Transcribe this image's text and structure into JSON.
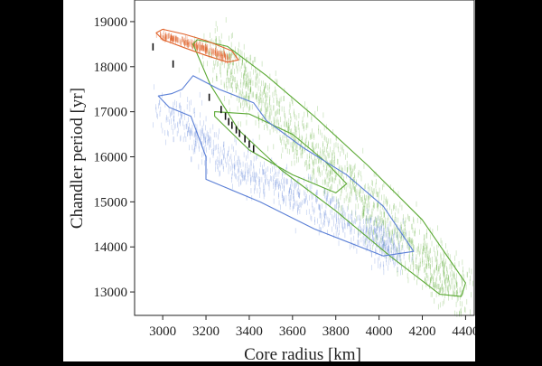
{
  "chart_data": {
    "type": "scatter",
    "title": "",
    "xlabel": "Core radius [km]",
    "ylabel": "Chandler period [yr]",
    "xlim": [
      2870,
      4440
    ],
    "ylim": [
      12480,
      19480
    ],
    "xticks": [
      3000,
      3200,
      3400,
      3600,
      3800,
      4000,
      4200,
      4400
    ],
    "yticks": [
      13000,
      14000,
      15000,
      16000,
      17000,
      18000,
      19000
    ],
    "grid": false,
    "legend": "none",
    "series": [
      {
        "color": "#5aa832",
        "marker": "vertical-dash",
        "cloud_centerline": [
          [
            3250,
            18350
          ],
          [
            3450,
            17250
          ],
          [
            3700,
            16100
          ],
          [
            3950,
            15000
          ],
          [
            4200,
            13800
          ],
          [
            4380,
            12950
          ]
        ],
        "contours": [
          [
            [
              3140,
              18500
            ],
            [
              3160,
              18600
            ],
            [
              3300,
              18450
            ],
            [
              3480,
              17800
            ],
            [
              3700,
              16900
            ],
            [
              3950,
              15800
            ],
            [
              4200,
              14600
            ],
            [
              4400,
              13200
            ],
            [
              4380,
              12900
            ],
            [
              4280,
              12950
            ],
            [
              4050,
              13800
            ],
            [
              3800,
              14800
            ],
            [
              3550,
              15700
            ],
            [
              3350,
              16600
            ],
            [
              3220,
              17600
            ],
            [
              3140,
              18500
            ]
          ],
          [
            [
              3240,
              17000
            ],
            [
              3400,
              16950
            ],
            [
              3600,
              16500
            ],
            [
              3750,
              15900
            ],
            [
              3850,
              15400
            ],
            [
              3800,
              15200
            ],
            [
              3600,
              15600
            ],
            [
              3400,
              16150
            ],
            [
              3240,
              16900
            ],
            [
              3240,
              17000
            ]
          ]
        ]
      },
      {
        "color": "#5a7fd6",
        "marker": "vertical-dash",
        "cloud_centerline": [
          [
            3020,
            17100
          ],
          [
            3200,
            16300
          ],
          [
            3400,
            15700
          ],
          [
            3600,
            15200
          ],
          [
            3800,
            14700
          ],
          [
            4000,
            14150
          ],
          [
            4100,
            13900
          ]
        ],
        "contours": [
          [
            [
              2980,
              17350
            ],
            [
              3040,
              17400
            ],
            [
              3090,
              17500
            ],
            [
              3140,
              17800
            ],
            [
              3260,
              17500
            ],
            [
              3420,
              17200
            ],
            [
              3480,
              16800
            ],
            [
              3650,
              16200
            ],
            [
              3850,
              15600
            ],
            [
              4020,
              14900
            ],
            [
              4160,
              13900
            ],
            [
              4020,
              13800
            ],
            [
              3700,
              14400
            ],
            [
              3450,
              15000
            ],
            [
              3300,
              15300
            ],
            [
              3200,
              15500
            ],
            [
              3200,
              16000
            ],
            [
              3130,
              16900
            ],
            [
              3030,
              17100
            ],
            [
              2980,
              17350
            ]
          ]
        ]
      },
      {
        "color": "#e0622a",
        "marker": "vertical-dash",
        "cloud_centerline": [
          [
            2990,
            18700
          ],
          [
            3100,
            18550
          ],
          [
            3200,
            18400
          ],
          [
            3320,
            18150
          ]
        ],
        "contours": [
          [
            [
              2970,
              18750
            ],
            [
              3000,
              18830
            ],
            [
              3100,
              18720
            ],
            [
              3200,
              18580
            ],
            [
              3320,
              18350
            ],
            [
              3350,
              18150
            ],
            [
              3300,
              18100
            ],
            [
              3200,
              18250
            ],
            [
              3100,
              18420
            ],
            [
              3000,
              18600
            ],
            [
              2970,
              18750
            ]
          ]
        ]
      },
      {
        "color": "#111111",
        "marker": "vertical-dash",
        "x": [
          2955,
          3048,
          3215,
          3270,
          3290,
          3305,
          3320,
          3340,
          3355,
          3380,
          3400,
          3420
        ],
        "y": [
          18440,
          18060,
          17320,
          17050,
          16900,
          16780,
          16700,
          16600,
          16520,
          16400,
          16280,
          16180
        ]
      }
    ]
  }
}
